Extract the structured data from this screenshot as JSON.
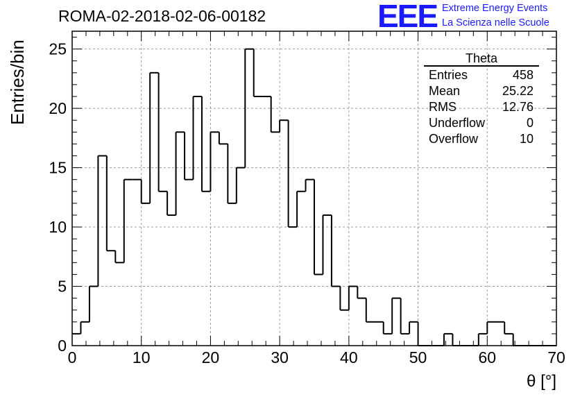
{
  "header": {
    "title": "ROMA-02-2018-02-06-00182"
  },
  "logo": {
    "mark": "EEE",
    "line1": "Extreme Energy Events",
    "line2": "La Scienza nelle Scuole",
    "color": "#1a1aff"
  },
  "axes": {
    "ylabel": "Entries/bin",
    "xlabel": "θ [°]"
  },
  "stats": {
    "title": "Theta",
    "rows": [
      {
        "label": "Entries",
        "value": "458"
      },
      {
        "label": "Mean",
        "value": "25.22"
      },
      {
        "label": "RMS",
        "value": "12.76"
      },
      {
        "label": "Underflow",
        "value": "0"
      },
      {
        "label": "Overflow",
        "value": "10"
      }
    ]
  },
  "chart_data": {
    "type": "bar",
    "style": "step-histogram",
    "title": "ROMA-02-2018-02-06-00182",
    "xlabel": "θ [°]",
    "ylabel": "Entries/bin",
    "bin_width": 1.25,
    "x_edges_start": 0,
    "values": [
      1,
      2,
      5,
      16,
      8,
      7,
      14,
      14,
      12,
      23,
      13,
      11,
      18,
      14,
      21,
      13,
      18,
      17,
      12,
      15,
      25,
      21,
      21,
      18,
      19,
      10,
      13,
      14,
      6,
      11,
      5,
      3,
      5,
      4,
      2,
      2,
      1,
      4,
      1,
      2,
      0,
      0,
      0,
      1,
      0,
      0,
      0,
      1,
      2,
      2,
      1,
      0,
      0,
      0,
      0,
      0
    ],
    "xlim": [
      0,
      70
    ],
    "ylim": [
      0,
      26.5
    ],
    "x_ticks": [
      0,
      10,
      20,
      30,
      40,
      50,
      60,
      70
    ],
    "y_ticks": [
      0,
      5,
      10,
      15,
      20,
      25
    ],
    "grid": true,
    "line_color": "#000000"
  }
}
